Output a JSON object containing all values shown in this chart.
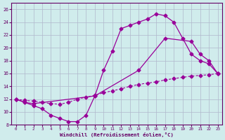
{
  "xlabel": "Windchill (Refroidissement éolien,°C)",
  "bg_color": "#d0ecec",
  "grid_color": "#b0b8cc",
  "line_color": "#990099",
  "xlim": [
    -0.5,
    23.5
  ],
  "ylim": [
    8,
    27
  ],
  "xticks": [
    0,
    1,
    2,
    3,
    4,
    5,
    6,
    7,
    8,
    9,
    10,
    11,
    12,
    13,
    14,
    15,
    16,
    17,
    18,
    19,
    20,
    21,
    22,
    23
  ],
  "yticks": [
    8,
    10,
    12,
    14,
    16,
    18,
    20,
    22,
    24,
    26
  ],
  "line1_x": [
    0,
    1,
    2,
    3,
    4,
    5,
    6,
    7,
    8,
    9,
    10,
    11,
    12,
    13,
    14,
    15,
    16,
    17,
    18,
    19,
    20,
    21,
    22,
    23
  ],
  "line1_y": [
    12,
    11.5,
    11,
    10.5,
    9.5,
    9.0,
    8.5,
    8.5,
    9.5,
    12.5,
    16.5,
    19.5,
    23.0,
    23.5,
    24.0,
    24.5,
    25.3,
    25.0,
    24.0,
    21.5,
    19.0,
    18.0,
    17.5,
    16.0
  ],
  "line2_x": [
    0,
    1,
    2,
    3,
    4,
    5,
    6,
    7,
    8,
    9,
    10,
    11,
    12,
    13,
    14,
    15,
    16,
    17,
    18,
    19,
    20,
    21,
    22,
    23
  ],
  "line2_y": [
    12,
    11.8,
    11.7,
    11.5,
    11.3,
    11.2,
    11.5,
    12.0,
    12.3,
    12.6,
    13.0,
    13.3,
    13.6,
    14.0,
    14.3,
    14.5,
    14.7,
    15.0,
    15.2,
    15.4,
    15.6,
    15.7,
    15.8,
    16.0
  ],
  "line3_x": [
    0,
    1,
    2,
    9,
    14,
    17,
    20,
    21,
    22,
    23
  ],
  "line3_y": [
    12,
    11.5,
    11.3,
    12.5,
    16.5,
    21.5,
    21.0,
    19.0,
    18.0,
    16.0
  ]
}
